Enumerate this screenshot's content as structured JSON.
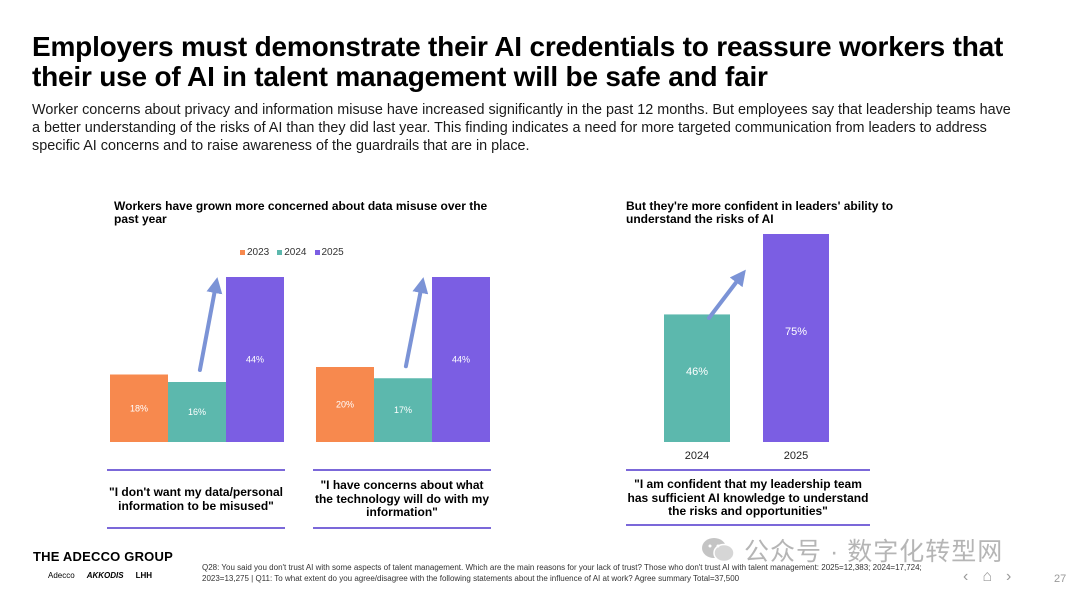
{
  "header": {
    "title": "Employers must demonstrate their AI credentials to reassure workers that their use of AI in talent management will be safe and fair",
    "subtitle": "Worker concerns about privacy and information misuse have increased significantly in the past 12 months. But employees say that leadership teams have a better understanding of the risks of AI than they did last year. This finding indicates a need for more targeted communication from leaders to address specific AI concerns and to raise awareness of the guardrails that are in place."
  },
  "colors": {
    "y2023": "#f7894e",
    "y2024": "#5cb8ad",
    "y2025": "#7b5ee3",
    "arrow": "#7b93d6",
    "rule": "#7b68d9"
  },
  "chart_data": [
    {
      "type": "bar",
      "title": "Workers have grown more concerned about data misuse over the past year",
      "legend": [
        "2023",
        "2024",
        "2025"
      ],
      "legend_position": "top",
      "ylim": [
        0,
        50
      ],
      "groups": [
        {
          "quote": "\"I don't want my data/personal information to be misused\"",
          "values": [
            18,
            16,
            44
          ],
          "labels": [
            "18%",
            "16%",
            "44%"
          ]
        },
        {
          "quote": "\"I have concerns about what the technology will do with my information\"",
          "values": [
            20,
            17,
            44
          ],
          "labels": [
            "20%",
            "17%",
            "44%"
          ]
        }
      ]
    },
    {
      "type": "bar",
      "title": "But they're more confident in leaders' ability to understand the risks of AI",
      "categories": [
        "2024",
        "2025"
      ],
      "values": [
        46,
        75
      ],
      "labels": [
        "46%",
        "75%"
      ],
      "ylim": [
        0,
        75
      ],
      "quote": "\"I am confident that my leadership team has sufficient AI knowledge to understand the risks and opportunities\""
    }
  ],
  "footer": {
    "logo": "THE ADECCO GROUP",
    "brands": [
      "Adecco",
      "AKKODIS",
      "LHH"
    ],
    "footnote": "Q28: You said you don't trust AI with some aspects of talent management. Which are the main reasons for your lack of trust? Those who don't trust AI with talent management: 2025=12,383; 2024=17,724; 2023=13,275 | Q11: To what extent do you agree/disagree with the following statements about the influence of AI at work? Agree summary Total=37,500",
    "watermark": "公众号 · 数字化转型网",
    "page_number": "27",
    "nav_prev": "‹",
    "nav_home": "⌂",
    "nav_next": "›"
  }
}
